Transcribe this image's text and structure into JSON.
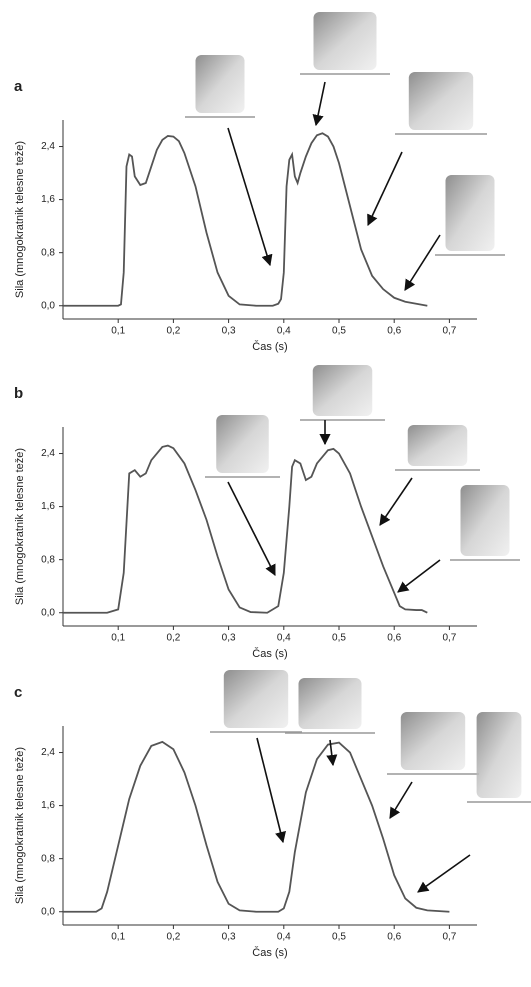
{
  "chart_data": [
    {
      "type": "line",
      "title": "a",
      "xlabel": "Čas (s)",
      "ylabel": "Sila (mnogokratnik telesne teže)",
      "color": "#555555",
      "xlim": [
        0,
        0.75
      ],
      "ylim": [
        -0.2,
        2.8
      ],
      "xticks": [
        {
          "value": 0.1,
          "label": "0,1"
        },
        {
          "value": 0.2,
          "label": "0,2"
        },
        {
          "value": 0.3,
          "label": "0,3"
        },
        {
          "value": 0.4,
          "label": "0,4"
        },
        {
          "value": 0.5,
          "label": "0,5"
        },
        {
          "value": 0.6,
          "label": "0,6"
        },
        {
          "value": 0.7,
          "label": "0,7"
        }
      ],
      "yticks": [
        {
          "value": 0,
          "label": "0,0"
        },
        {
          "value": 0.8,
          "label": "0,8"
        },
        {
          "value": 1.6,
          "label": "1,6"
        },
        {
          "value": 2.4,
          "label": "2,4"
        }
      ],
      "x": [
        0,
        0.1,
        0.105,
        0.11,
        0.115,
        0.12,
        0.125,
        0.13,
        0.14,
        0.15,
        0.16,
        0.17,
        0.18,
        0.19,
        0.2,
        0.21,
        0.22,
        0.24,
        0.26,
        0.28,
        0.3,
        0.32,
        0.35,
        0.38,
        0.39,
        0.395,
        0.4,
        0.405,
        0.41,
        0.415,
        0.42,
        0.425,
        0.43,
        0.44,
        0.45,
        0.46,
        0.47,
        0.48,
        0.49,
        0.5,
        0.52,
        0.54,
        0.56,
        0.58,
        0.6,
        0.62,
        0.64,
        0.66
      ],
      "values": [
        0,
        0,
        0.02,
        0.5,
        2.1,
        2.28,
        2.25,
        1.95,
        1.82,
        1.85,
        2.1,
        2.35,
        2.5,
        2.56,
        2.55,
        2.48,
        2.3,
        1.8,
        1.1,
        0.5,
        0.15,
        0.02,
        0,
        0,
        0.03,
        0.1,
        0.5,
        1.8,
        2.2,
        2.28,
        1.95,
        1.85,
        2.0,
        2.25,
        2.45,
        2.57,
        2.6,
        2.55,
        2.4,
        2.15,
        1.5,
        0.85,
        0.45,
        0.25,
        0.12,
        0.06,
        0.03,
        0
      ]
    },
    {
      "type": "line",
      "title": "b",
      "xlabel": "Čas (s)",
      "ylabel": "Sila (mnogokratnik telesne teže)",
      "color": "#555555",
      "xlim": [
        0,
        0.75
      ],
      "ylim": [
        -0.2,
        2.8
      ],
      "xticks": [
        {
          "value": 0.1,
          "label": "0,1"
        },
        {
          "value": 0.2,
          "label": "0,2"
        },
        {
          "value": 0.3,
          "label": "0,3"
        },
        {
          "value": 0.4,
          "label": "0,4"
        },
        {
          "value": 0.5,
          "label": "0,5"
        },
        {
          "value": 0.6,
          "label": "0,6"
        },
        {
          "value": 0.7,
          "label": "0,7"
        }
      ],
      "yticks": [
        {
          "value": 0,
          "label": "0,0"
        },
        {
          "value": 0.8,
          "label": "0,8"
        },
        {
          "value": 1.6,
          "label": "1,6"
        },
        {
          "value": 2.4,
          "label": "2,4"
        }
      ],
      "x": [
        0,
        0.08,
        0.1,
        0.11,
        0.12,
        0.13,
        0.14,
        0.15,
        0.16,
        0.18,
        0.19,
        0.2,
        0.22,
        0.24,
        0.26,
        0.28,
        0.3,
        0.32,
        0.34,
        0.37,
        0.39,
        0.4,
        0.41,
        0.415,
        0.42,
        0.43,
        0.44,
        0.45,
        0.46,
        0.48,
        0.49,
        0.5,
        0.52,
        0.54,
        0.56,
        0.58,
        0.6,
        0.61,
        0.62,
        0.64,
        0.65,
        0.66
      ],
      "values": [
        0,
        0,
        0.05,
        0.6,
        2.1,
        2.15,
        2.05,
        2.1,
        2.3,
        2.5,
        2.52,
        2.48,
        2.25,
        1.85,
        1.4,
        0.85,
        0.35,
        0.08,
        0.01,
        0,
        0.1,
        0.6,
        1.6,
        2.2,
        2.3,
        2.25,
        2.0,
        2.05,
        2.25,
        2.45,
        2.47,
        2.4,
        2.1,
        1.6,
        1.15,
        0.7,
        0.3,
        0.1,
        0.05,
        0.04,
        0.04,
        0
      ]
    },
    {
      "type": "line",
      "title": "c",
      "xlabel": "Čas (s)",
      "ylabel": "Sila (mnogokratnik telesne teže)",
      "color": "#555555",
      "xlim": [
        0,
        0.75
      ],
      "ylim": [
        -0.2,
        2.8
      ],
      "xticks": [
        {
          "value": 0.1,
          "label": "0,1"
        },
        {
          "value": 0.2,
          "label": "0,2"
        },
        {
          "value": 0.3,
          "label": "0,3"
        },
        {
          "value": 0.4,
          "label": "0,4"
        },
        {
          "value": 0.5,
          "label": "0,5"
        },
        {
          "value": 0.6,
          "label": "0,6"
        },
        {
          "value": 0.7,
          "label": "0,7"
        }
      ],
      "yticks": [
        {
          "value": 0,
          "label": "0,0"
        },
        {
          "value": 0.8,
          "label": "0,8"
        },
        {
          "value": 1.6,
          "label": "1,6"
        },
        {
          "value": 2.4,
          "label": "2,4"
        }
      ],
      "x": [
        0,
        0.06,
        0.07,
        0.08,
        0.1,
        0.12,
        0.14,
        0.16,
        0.18,
        0.2,
        0.22,
        0.24,
        0.26,
        0.28,
        0.3,
        0.32,
        0.35,
        0.39,
        0.4,
        0.41,
        0.42,
        0.44,
        0.46,
        0.48,
        0.5,
        0.52,
        0.54,
        0.56,
        0.58,
        0.6,
        0.62,
        0.64,
        0.66,
        0.7
      ],
      "values": [
        0,
        0,
        0.05,
        0.3,
        1.0,
        1.7,
        2.2,
        2.5,
        2.56,
        2.45,
        2.1,
        1.6,
        1.0,
        0.45,
        0.12,
        0.02,
        0,
        0,
        0.05,
        0.3,
        0.9,
        1.8,
        2.3,
        2.52,
        2.55,
        2.4,
        2.0,
        1.6,
        1.1,
        0.55,
        0.2,
        0.06,
        0.02,
        0
      ]
    }
  ]
}
